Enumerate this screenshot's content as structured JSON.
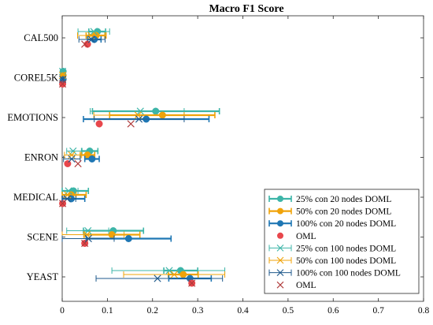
{
  "chart_data": {
    "type": "scatter",
    "title": "Macro F1 Score",
    "xlabel": "",
    "ylabel": "",
    "xlim": [
      0,
      0.8
    ],
    "xticks": [
      0,
      0.1,
      0.2,
      0.3,
      0.4,
      0.5,
      0.6,
      0.7,
      0.8
    ],
    "xtick_labels": [
      "0",
      "0.1",
      "0.2",
      "0.3",
      "0.4",
      "0.5",
      "0.6",
      "0.7",
      "0.8"
    ],
    "categories": [
      "CAL500",
      "COREL5K",
      "EMOTIONS",
      "ENRON",
      "MEDICAL",
      "SCENE",
      "YEAST"
    ],
    "grid": false,
    "legend_position": "bottom-right",
    "series": [
      {
        "name": "25% con 20 nodes DOML",
        "color": "#3DB5A8",
        "marker": "filled-circle",
        "values": [
          0.078,
          0.002,
          0.207,
          0.061,
          0.025,
          0.113,
          0.262
        ],
        "errors": [
          [
            0.059,
            0.096
          ],
          [
            0.0,
            0.005
          ],
          [
            0.067,
            0.348
          ],
          [
            0.043,
            0.079
          ],
          [
            0.0,
            0.058
          ],
          [
            0.047,
            0.18
          ],
          [
            0.225,
            0.3
          ]
        ]
      },
      {
        "name": "50% con 20 nodes DOML",
        "color": "#F0A30A",
        "marker": "filled-circle",
        "values": [
          0.075,
          0.002,
          0.222,
          0.056,
          0.02,
          0.11,
          0.268
        ],
        "errors": [
          [
            0.053,
            0.097
          ],
          [
            0.0,
            0.005
          ],
          [
            0.105,
            0.338
          ],
          [
            0.04,
            0.072
          ],
          [
            0.0,
            0.053
          ],
          [
            0.048,
            0.172
          ],
          [
            0.235,
            0.301
          ]
        ]
      },
      {
        "name": "100% con 20 nodes DOML",
        "color": "#1F77B4",
        "marker": "filled-circle",
        "values": [
          0.071,
          0.002,
          0.186,
          0.066,
          0.02,
          0.147,
          0.283
        ],
        "errors": [
          [
            0.056,
            0.086
          ],
          [
            0.0,
            0.004
          ],
          [
            0.047,
            0.325
          ],
          [
            0.05,
            0.082
          ],
          [
            0.0,
            0.05
          ],
          [
            0.053,
            0.241
          ],
          [
            0.236,
            0.33
          ]
        ]
      },
      {
        "name": "OML",
        "color": "#E8474C",
        "marker": "filled-circle",
        "values": [
          0.056,
          0.001,
          0.082,
          0.012,
          0.001,
          0.05,
          0.287
        ],
        "errors": null
      },
      {
        "name": "25% con 100 nodes DOML",
        "color": "#3DB5A8",
        "marker": "x",
        "values": [
          0.07,
          0.001,
          0.173,
          0.024,
          0.014,
          0.057,
          0.237
        ],
        "errors": [
          [
            0.035,
            0.105
          ],
          [
            0.0,
            0.004
          ],
          [
            0.062,
            0.27
          ],
          [
            0.01,
            0.044
          ],
          [
            0.0,
            0.035
          ],
          [
            0.01,
            0.103
          ],
          [
            0.11,
            0.36
          ]
        ]
      },
      {
        "name": "50% con 100 nodes DOML",
        "color": "#F0A30A",
        "marker": "x",
        "values": [
          0.064,
          0.001,
          0.168,
          0.021,
          0.012,
          0.055,
          0.248
        ],
        "errors": [
          [
            0.034,
            0.094
          ],
          [
            0.0,
            0.004
          ],
          [
            0.07,
            0.27
          ],
          [
            0.005,
            0.043
          ],
          [
            0.0,
            0.031
          ],
          [
            0.0,
            0.137
          ],
          [
            0.136,
            0.36
          ]
        ]
      },
      {
        "name": "100% con 100 nodes DOML",
        "color": "#1F5A8C",
        "marker": "x",
        "values": [
          0.065,
          0.001,
          0.17,
          0.021,
          0.011,
          0.058,
          0.211
        ],
        "errors": [
          [
            0.037,
            0.095
          ],
          [
            0.0,
            0.003
          ],
          [
            0.071,
            0.27
          ],
          [
            0.003,
            0.04
          ],
          [
            0.0,
            0.03
          ],
          [
            0.0,
            0.115
          ],
          [
            0.075,
            0.355
          ]
        ]
      },
      {
        "name": "OML",
        "color": "#B03A3A",
        "marker": "x",
        "values": [
          0.05,
          0.001,
          0.152,
          0.035,
          0.001,
          0.05,
          0.287
        ],
        "errors": null
      }
    ]
  }
}
